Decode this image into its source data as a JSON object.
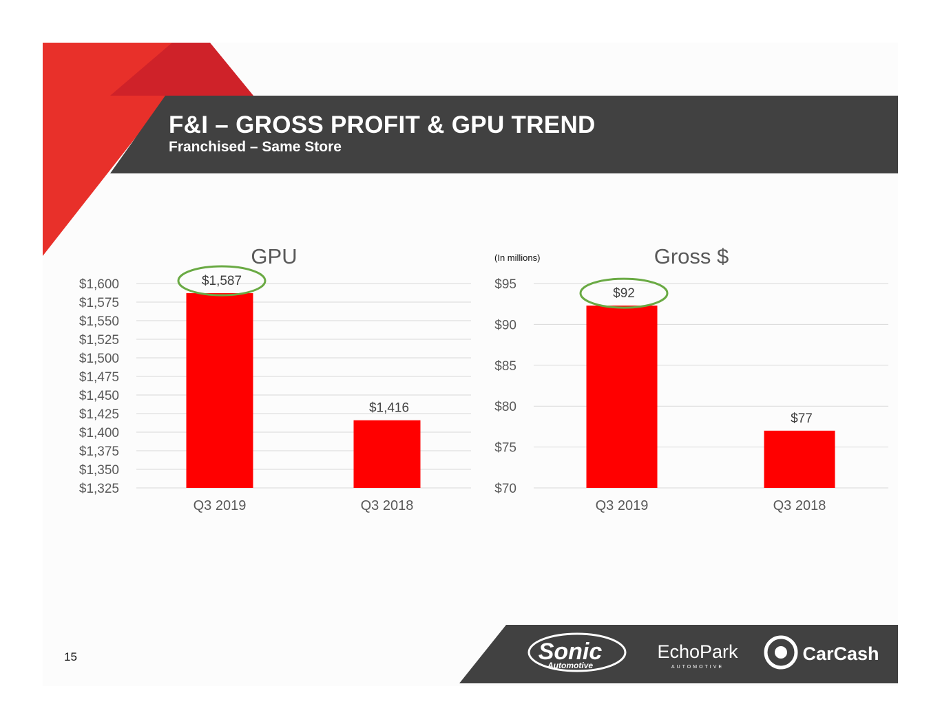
{
  "slide": {
    "title": "F&I – GROSS PROFIT & GPU TREND",
    "subtitle": "Franchised – Same Store",
    "page_number": "15",
    "colors": {
      "banner": "#414141",
      "accent_red": "#e8302a",
      "bar_red": "#ff0000",
      "highlight_circle": "#6aaa44",
      "background": "#fcfcfc"
    },
    "logos": [
      "Sonic Automotive",
      "EchoPark Automotive",
      "CarCash"
    ]
  },
  "chart_data": [
    {
      "type": "bar",
      "title": "GPU",
      "categories": [
        "Q3 2019",
        "Q3 2018"
      ],
      "values": [
        1587,
        1416
      ],
      "data_labels": [
        "$1,587",
        "$1,416"
      ],
      "ylim": [
        1325,
        1600
      ],
      "y_ticks": [
        "$1,600",
        "$1,575",
        "$1,550",
        "$1,525",
        "$1,500",
        "$1,475",
        "$1,450",
        "$1,425",
        "$1,400",
        "$1,375",
        "$1,350",
        "$1,325"
      ],
      "highlighted_index": 0,
      "grid": true
    },
    {
      "type": "bar",
      "title": "Gross $",
      "unit_note": "(In millions)",
      "categories": [
        "Q3 2019",
        "Q3 2018"
      ],
      "values": [
        92.3,
        77
      ],
      "data_labels": [
        "$92",
        "$77"
      ],
      "ylim": [
        70,
        95
      ],
      "y_ticks": [
        "$95",
        "$90",
        "$85",
        "$80",
        "$75",
        "$70"
      ],
      "highlighted_index": 0,
      "grid": true
    }
  ]
}
